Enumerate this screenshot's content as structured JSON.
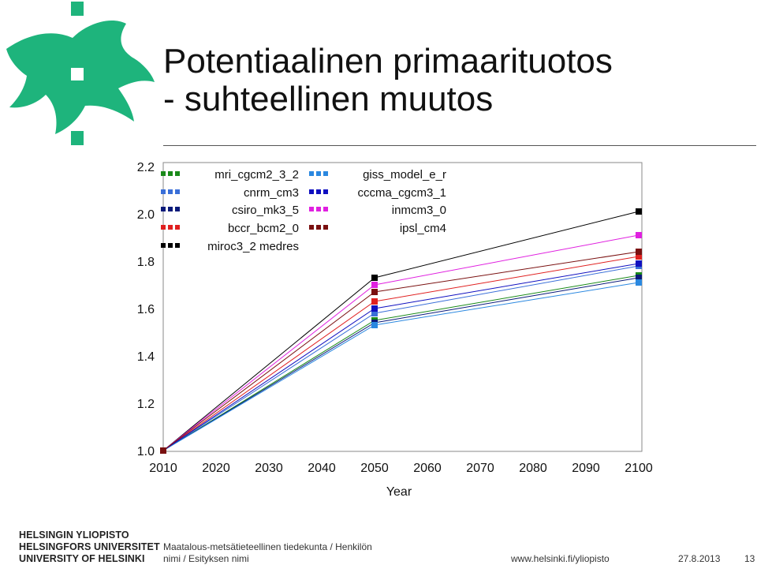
{
  "slide": {
    "title_line1": "Potentiaalinen primaarituotos",
    "title_line2": "- suhteellinen muutos"
  },
  "logo": {
    "icon": "university-of-helsinki-flame-logo",
    "color": "#1eb47c"
  },
  "chart_data": {
    "type": "line",
    "title": "",
    "xlabel": "Year",
    "ylabel": "",
    "x": [
      2010,
      2050,
      2100
    ],
    "xticks": [
      "2010",
      "2020",
      "2030",
      "2040",
      "2050",
      "2060",
      "2070",
      "2080",
      "2090",
      "2100"
    ],
    "yticks": [
      "1.0",
      "1.2",
      "1.4",
      "1.6",
      "1.8",
      "2.0",
      "2.2"
    ],
    "xlim": [
      2010,
      2100
    ],
    "ylim": [
      1.0,
      2.2
    ],
    "grid": false,
    "legend_position": "top-left",
    "series": [
      {
        "name": "mri_cgcm2_3_2",
        "color": "#1a8a1a",
        "values": [
          1.0,
          1.55,
          1.74
        ]
      },
      {
        "name": "cnrm_cm3",
        "color": "#3a6fd8",
        "values": [
          1.0,
          1.58,
          1.78
        ]
      },
      {
        "name": "csiro_mk3_5",
        "color": "#0a1a7a",
        "values": [
          1.0,
          1.54,
          1.73
        ]
      },
      {
        "name": "bccr_bcm2_0",
        "color": "#e02020",
        "values": [
          1.0,
          1.63,
          1.82
        ]
      },
      {
        "name": "miroc3_2 medres",
        "color": "#000000",
        "values": [
          1.0,
          1.73,
          2.01
        ]
      },
      {
        "name": "giss_model_e_r",
        "color": "#2a88e0",
        "values": [
          1.0,
          1.53,
          1.71
        ]
      },
      {
        "name": "cccma_cgcm3_1",
        "color": "#1010c0",
        "values": [
          1.0,
          1.6,
          1.79
        ]
      },
      {
        "name": "inmcm3_0",
        "color": "#e020e0",
        "values": [
          1.0,
          1.7,
          1.91
        ]
      },
      {
        "name": "ipsl_cm4",
        "color": "#7a1010",
        "values": [
          1.0,
          1.67,
          1.84
        ]
      }
    ]
  },
  "footer": {
    "uni_fi": "HELSINGIN YLIOPISTO",
    "uni_sv": "HELSINGFORS UNIVERSITET",
    "uni_en": "UNIVERSITY OF HELSINKI",
    "department": "Maatalous-metsätieteellinen tiedekunta / Henkilön",
    "presenter": "nimi / Esityksen nimi",
    "url": "www.helsinki.fi/yliopisto",
    "date": "27.8.2013",
    "page": "13"
  }
}
